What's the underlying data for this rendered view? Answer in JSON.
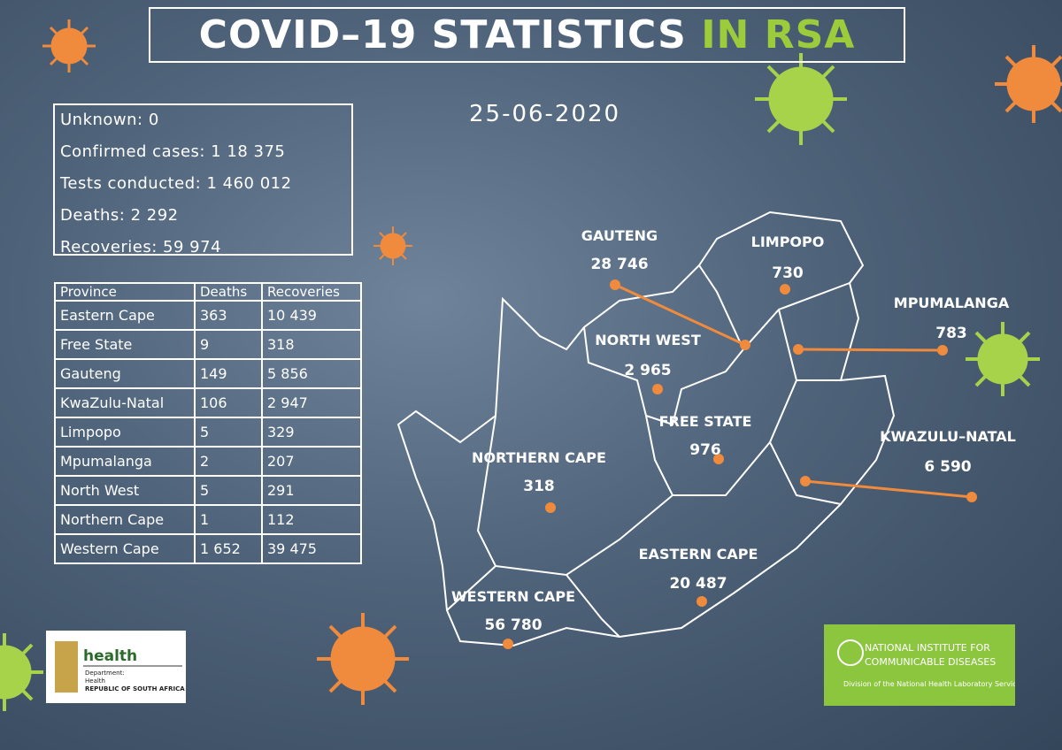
{
  "header": {
    "title": "COVID–19 STATISTICS",
    "highlight": "IN RSA",
    "date": "25-06-2020"
  },
  "summary": [
    "Unknown: 0",
    "Confirmed cases: 1 18 375",
    "Tests conducted: 1 460 012",
    "Deaths: 2 292",
    "Recoveries: 59 974"
  ],
  "table": {
    "header": [
      "Province",
      "Deaths",
      "Recoveries"
    ],
    "rows": [
      [
        "Eastern Cape",
        "363",
        "10 439"
      ],
      [
        "Free State",
        "9",
        "318"
      ],
      [
        "Gauteng",
        "149",
        "5 856"
      ],
      [
        "KwaZulu-Natal",
        "106",
        "2 947"
      ],
      [
        "Limpopo",
        "5",
        "329"
      ],
      [
        "Mpumalanga",
        "2",
        "207"
      ],
      [
        "North West",
        "5",
        "291"
      ],
      [
        "Northern Cape",
        "1",
        "112"
      ],
      [
        "Western Cape",
        "1 652",
        "39 475"
      ]
    ]
  },
  "map": {
    "provinces": [
      {
        "name": "GAUTENG",
        "value": "28 746"
      },
      {
        "name": "LIMPOPO",
        "value": "730"
      },
      {
        "name": "MPUMALANGA",
        "value": "783"
      },
      {
        "name": "NORTH WEST",
        "value": "2 965"
      },
      {
        "name": "FREE STATE",
        "value": "976"
      },
      {
        "name": "KWAZULU–NATAL",
        "value": "6 590"
      },
      {
        "name": "NORTHERN CAPE",
        "value": "318"
      },
      {
        "name": "EASTERN CAPE",
        "value": "20 487"
      },
      {
        "name": "WESTERN CAPE",
        "value": "56 780"
      }
    ]
  },
  "logos": {
    "health": [
      "health",
      "Department:",
      "Health",
      "REPUBLIC OF SOUTH AFRICA"
    ],
    "nicd": [
      "NATIONAL INSTITUTE FOR",
      "COMMUNICABLE DISEASES",
      "Division of the National Health Laboratory Service"
    ]
  }
}
